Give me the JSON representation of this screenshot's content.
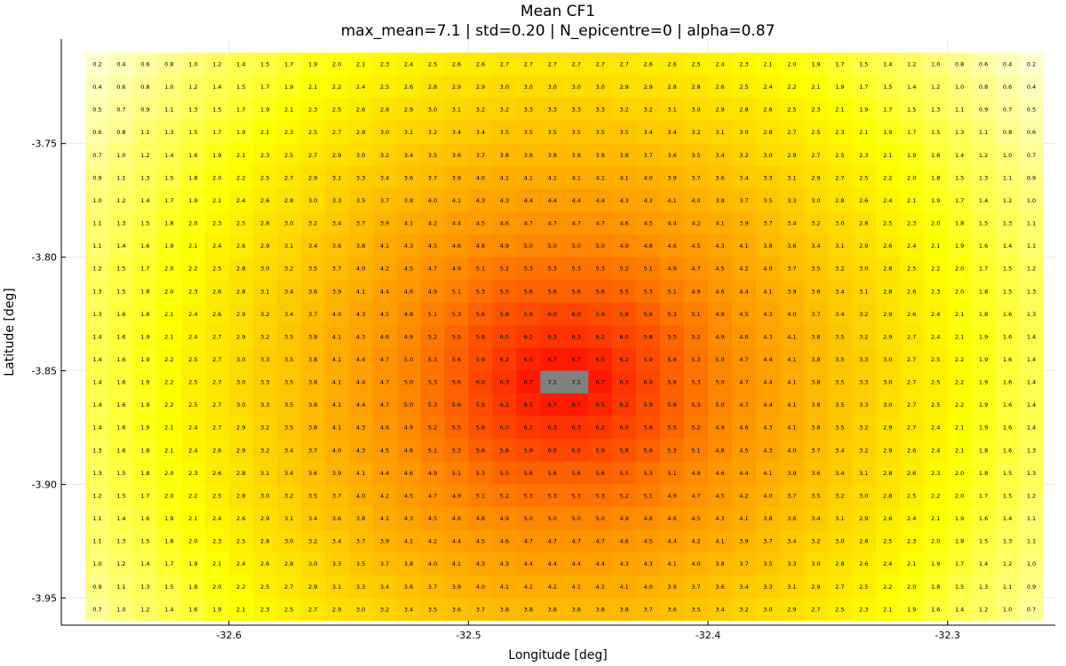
{
  "chart_data": {
    "type": "heatmap",
    "title": "Mean CF1",
    "subtitle": "max_mean=7.1 | std=0.20 | N_epicentre=0 | alpha=0.87",
    "xlabel": "Longitude [deg]",
    "ylabel": "Latitude [deg]",
    "x_ticks": [
      -32.6,
      -32.5,
      -32.4,
      -32.3
    ],
    "x_tick_labels": [
      "-32.6",
      "-32.5",
      "-32.4",
      "-32.3"
    ],
    "y_ticks": [
      -3.75,
      -3.8,
      -3.85,
      -3.9,
      -3.95
    ],
    "y_tick_labels": [
      "-3.75",
      "-3.80",
      "-3.85",
      "-3.90",
      "-3.95"
    ],
    "xlim": [
      -32.67,
      -32.255
    ],
    "ylim": [
      -3.962,
      -3.704
    ],
    "x_start": -32.655,
    "x_step": 0.01,
    "y_start": -3.715,
    "y_step": -0.01,
    "grid": true,
    "highlight_value": 7.1,
    "highlight_color": "#808080",
    "colors": [
      "#ffffe6",
      "#ffff00",
      "#ff8800",
      "#ff0000"
    ],
    "rows": [
      [
        0.2,
        0.4,
        0.6,
        0.8,
        1.0,
        1.2,
        1.4,
        1.5,
        1.7,
        1.9,
        2.0,
        2.1,
        2.3,
        2.4,
        2.5,
        2.6,
        2.6,
        2.7,
        2.7,
        2.7,
        2.7,
        2.7,
        2.7,
        2.6,
        2.6,
        2.5,
        2.4,
        2.3,
        2.1,
        2.0,
        1.9,
        1.7,
        1.5,
        1.4,
        1.2,
        1.0,
        0.8,
        0.6,
        0.4,
        0.2
      ],
      [
        0.4,
        0.6,
        0.8,
        1.0,
        1.2,
        1.4,
        1.5,
        1.7,
        1.9,
        2.1,
        2.2,
        2.4,
        2.5,
        2.6,
        2.8,
        2.9,
        2.9,
        3.0,
        3.0,
        3.0,
        3.0,
        3.0,
        2.9,
        2.9,
        2.8,
        2.8,
        2.6,
        2.5,
        2.4,
        2.2,
        2.1,
        1.9,
        1.7,
        1.5,
        1.4,
        1.2,
        1.0,
        0.8,
        0.6,
        0.4
      ],
      [
        0.5,
        0.7,
        0.9,
        1.1,
        1.3,
        1.5,
        1.7,
        1.9,
        2.1,
        2.3,
        2.5,
        2.6,
        2.8,
        2.9,
        3.0,
        3.1,
        3.2,
        3.2,
        3.3,
        3.3,
        3.3,
        3.3,
        3.2,
        3.2,
        3.1,
        3.0,
        2.9,
        2.8,
        2.6,
        2.5,
        2.3,
        2.1,
        1.9,
        1.7,
        1.5,
        1.3,
        1.1,
        0.9,
        0.7,
        0.5
      ],
      [
        0.6,
        0.8,
        1.1,
        1.3,
        1.5,
        1.7,
        1.9,
        2.1,
        2.3,
        2.5,
        2.7,
        2.8,
        3.0,
        3.1,
        3.2,
        3.4,
        3.4,
        3.5,
        3.5,
        3.5,
        3.5,
        3.5,
        3.5,
        3.4,
        3.4,
        3.2,
        3.1,
        3.0,
        2.8,
        2.7,
        2.5,
        2.3,
        2.1,
        1.9,
        1.7,
        1.5,
        1.3,
        1.1,
        0.8,
        0.6
      ],
      [
        0.7,
        1.0,
        1.2,
        1.4,
        1.6,
        1.9,
        2.1,
        2.3,
        2.5,
        2.7,
        2.9,
        3.0,
        3.2,
        3.4,
        3.5,
        3.6,
        3.7,
        3.8,
        3.8,
        3.8,
        3.8,
        3.8,
        3.8,
        3.7,
        3.6,
        3.5,
        3.4,
        3.2,
        3.0,
        2.9,
        2.7,
        2.5,
        2.3,
        2.1,
        1.9,
        1.6,
        1.4,
        1.2,
        1.0,
        0.7
      ],
      [
        0.9,
        1.1,
        1.3,
        1.5,
        1.8,
        2.0,
        2.2,
        2.5,
        2.7,
        2.9,
        3.1,
        3.3,
        3.4,
        3.6,
        3.7,
        3.9,
        4.0,
        4.1,
        4.1,
        4.1,
        4.1,
        4.1,
        4.1,
        4.0,
        3.9,
        3.7,
        3.6,
        3.4,
        3.3,
        3.1,
        2.9,
        2.7,
        2.5,
        2.2,
        2.0,
        1.8,
        1.5,
        1.3,
        1.1,
        0.9
      ],
      [
        1.0,
        1.2,
        1.4,
        1.7,
        1.9,
        2.1,
        2.4,
        2.6,
        2.8,
        3.0,
        3.3,
        3.5,
        3.7,
        3.8,
        4.0,
        4.1,
        4.3,
        4.3,
        4.4,
        4.4,
        4.4,
        4.4,
        4.3,
        4.3,
        4.1,
        4.0,
        3.8,
        3.7,
        3.5,
        3.3,
        3.0,
        2.8,
        2.6,
        2.4,
        2.1,
        1.9,
        1.7,
        1.4,
        1.2,
        1.0
      ],
      [
        1.1,
        1.3,
        1.5,
        1.8,
        2.0,
        2.3,
        2.5,
        2.8,
        3.0,
        3.2,
        3.4,
        3.7,
        3.9,
        4.1,
        4.2,
        4.4,
        4.5,
        4.6,
        4.7,
        4.7,
        4.7,
        4.7,
        4.6,
        4.5,
        4.4,
        4.2,
        4.1,
        3.9,
        3.7,
        3.4,
        3.2,
        3.0,
        2.8,
        2.5,
        2.3,
        2.0,
        1.8,
        1.5,
        1.3,
        1.1
      ],
      [
        1.1,
        1.4,
        1.6,
        1.9,
        2.1,
        2.4,
        2.6,
        2.9,
        3.1,
        3.4,
        3.6,
        3.8,
        4.1,
        4.3,
        4.5,
        4.6,
        4.8,
        4.9,
        5.0,
        5.0,
        5.0,
        5.0,
        4.9,
        4.8,
        4.6,
        4.5,
        4.3,
        4.1,
        3.8,
        3.6,
        3.4,
        3.1,
        2.9,
        2.6,
        2.4,
        2.1,
        1.9,
        1.6,
        1.4,
        1.1
      ],
      [
        1.2,
        1.5,
        1.7,
        2.0,
        2.2,
        2.5,
        2.8,
        3.0,
        3.2,
        3.5,
        3.7,
        4.0,
        4.2,
        4.5,
        4.7,
        4.9,
        5.1,
        5.2,
        5.3,
        5.3,
        5.3,
        5.3,
        5.2,
        5.1,
        4.9,
        4.7,
        4.5,
        4.2,
        4.0,
        3.7,
        3.5,
        3.2,
        3.0,
        2.8,
        2.5,
        2.2,
        2.0,
        1.7,
        1.5,
        1.2
      ],
      [
        1.3,
        1.5,
        1.8,
        2.0,
        2.3,
        2.6,
        2.8,
        3.1,
        3.4,
        3.6,
        3.9,
        4.1,
        4.4,
        4.6,
        4.9,
        5.1,
        5.3,
        5.5,
        5.6,
        5.6,
        5.6,
        5.6,
        5.5,
        5.3,
        5.1,
        4.9,
        4.6,
        4.4,
        4.1,
        3.9,
        3.6,
        3.4,
        3.1,
        2.8,
        2.6,
        2.3,
        2.0,
        1.8,
        1.5,
        1.3
      ],
      [
        1.3,
        1.6,
        1.8,
        2.1,
        2.4,
        2.6,
        2.9,
        3.2,
        3.4,
        3.7,
        4.0,
        4.3,
        4.5,
        4.8,
        5.1,
        5.3,
        5.6,
        5.8,
        5.9,
        6.0,
        6.0,
        5.9,
        5.8,
        5.6,
        5.3,
        5.1,
        4.8,
        4.5,
        4.3,
        4.0,
        3.7,
        3.4,
        3.2,
        2.9,
        2.6,
        2.4,
        2.1,
        1.8,
        1.6,
        1.3
      ],
      [
        1.4,
        1.6,
        1.9,
        2.1,
        2.4,
        2.7,
        2.9,
        3.2,
        3.5,
        3.8,
        4.1,
        4.3,
        4.6,
        4.9,
        5.2,
        5.5,
        5.8,
        6.0,
        6.2,
        6.3,
        6.3,
        6.2,
        6.0,
        5.8,
        5.5,
        5.2,
        4.9,
        4.6,
        4.3,
        4.1,
        3.8,
        3.5,
        3.2,
        2.9,
        2.7,
        2.4,
        2.1,
        1.9,
        1.6,
        1.4
      ],
      [
        1.4,
        1.6,
        1.9,
        2.2,
        2.5,
        2.7,
        3.0,
        3.3,
        3.5,
        3.8,
        4.1,
        4.4,
        4.7,
        5.0,
        5.3,
        5.6,
        5.9,
        6.2,
        6.5,
        6.7,
        6.7,
        6.5,
        6.2,
        5.9,
        5.6,
        5.3,
        5.0,
        4.7,
        4.4,
        4.1,
        3.8,
        3.5,
        3.3,
        3.0,
        2.7,
        2.5,
        2.2,
        1.9,
        1.6,
        1.4
      ],
      [
        1.4,
        1.6,
        1.9,
        2.2,
        2.5,
        2.7,
        3.0,
        3.3,
        3.5,
        3.8,
        4.1,
        4.4,
        4.7,
        5.0,
        5.3,
        5.6,
        6.0,
        6.3,
        6.7,
        7.1,
        7.1,
        6.7,
        6.3,
        6.0,
        5.6,
        5.3,
        5.0,
        4.7,
        4.4,
        4.1,
        3.8,
        3.5,
        3.3,
        3.0,
        2.7,
        2.5,
        2.2,
        1.9,
        1.6,
        1.4
      ],
      [
        1.4,
        1.6,
        1.9,
        2.2,
        2.5,
        2.7,
        3.0,
        3.3,
        3.5,
        3.8,
        4.1,
        4.4,
        4.7,
        5.0,
        5.3,
        5.6,
        5.9,
        6.2,
        6.5,
        6.7,
        6.7,
        6.5,
        6.2,
        5.9,
        5.6,
        5.3,
        5.0,
        4.7,
        4.4,
        4.1,
        3.8,
        3.5,
        3.3,
        3.0,
        2.7,
        2.5,
        2.2,
        1.9,
        1.6,
        1.4
      ],
      [
        1.4,
        1.6,
        1.9,
        2.1,
        2.4,
        2.7,
        2.9,
        3.2,
        3.5,
        3.8,
        4.1,
        4.3,
        4.6,
        4.9,
        5.2,
        5.5,
        5.8,
        6.0,
        6.2,
        6.3,
        6.3,
        6.2,
        6.0,
        5.8,
        5.5,
        5.2,
        4.9,
        4.6,
        4.3,
        4.1,
        3.8,
        3.5,
        3.2,
        2.9,
        2.7,
        2.4,
        2.1,
        1.9,
        1.6,
        1.4
      ],
      [
        1.3,
        1.6,
        1.8,
        2.1,
        2.4,
        2.6,
        2.9,
        3.2,
        3.4,
        3.7,
        4.0,
        4.3,
        4.5,
        4.8,
        5.1,
        5.3,
        5.6,
        5.8,
        5.9,
        6.0,
        6.0,
        5.9,
        5.8,
        5.6,
        5.3,
        5.1,
        4.8,
        4.5,
        4.3,
        4.0,
        3.7,
        3.4,
        3.2,
        2.9,
        2.6,
        2.4,
        2.1,
        1.8,
        1.6,
        1.3
      ],
      [
        1.3,
        1.5,
        1.8,
        2.0,
        2.3,
        2.6,
        2.8,
        3.1,
        3.4,
        3.6,
        3.9,
        4.1,
        4.4,
        4.6,
        4.9,
        5.1,
        5.3,
        5.5,
        5.6,
        5.6,
        5.6,
        5.6,
        5.5,
        5.3,
        5.1,
        4.9,
        4.6,
        4.4,
        4.1,
        3.9,
        3.6,
        3.4,
        3.1,
        2.8,
        2.6,
        2.3,
        2.0,
        1.8,
        1.5,
        1.3
      ],
      [
        1.2,
        1.5,
        1.7,
        2.0,
        2.2,
        2.5,
        2.8,
        3.0,
        3.2,
        3.5,
        3.7,
        4.0,
        4.2,
        4.5,
        4.7,
        4.9,
        5.1,
        5.2,
        5.3,
        5.3,
        5.3,
        5.3,
        5.2,
        5.1,
        4.9,
        4.7,
        4.5,
        4.2,
        4.0,
        3.7,
        3.5,
        3.2,
        3.0,
        2.8,
        2.5,
        2.2,
        2.0,
        1.7,
        1.5,
        1.2
      ],
      [
        1.1,
        1.4,
        1.6,
        1.9,
        2.1,
        2.4,
        2.6,
        2.9,
        3.1,
        3.4,
        3.6,
        3.8,
        4.1,
        4.3,
        4.5,
        4.6,
        4.8,
        4.9,
        5.0,
        5.0,
        5.0,
        5.0,
        4.9,
        4.8,
        4.6,
        4.5,
        4.3,
        4.1,
        3.8,
        3.6,
        3.4,
        3.1,
        2.9,
        2.6,
        2.4,
        2.1,
        1.9,
        1.6,
        1.4,
        1.1
      ],
      [
        1.1,
        1.3,
        1.5,
        1.8,
        2.0,
        2.3,
        2.5,
        2.8,
        3.0,
        3.2,
        3.4,
        3.7,
        3.9,
        4.1,
        4.2,
        4.4,
        4.5,
        4.6,
        4.7,
        4.7,
        4.7,
        4.7,
        4.6,
        4.5,
        4.4,
        4.2,
        4.1,
        3.9,
        3.7,
        3.4,
        3.2,
        3.0,
        2.8,
        2.5,
        2.3,
        2.0,
        1.8,
        1.5,
        1.3,
        1.1
      ],
      [
        1.0,
        1.2,
        1.4,
        1.7,
        1.9,
        2.1,
        2.4,
        2.6,
        2.8,
        3.0,
        3.3,
        3.5,
        3.7,
        3.8,
        4.0,
        4.1,
        4.3,
        4.3,
        4.4,
        4.4,
        4.4,
        4.4,
        4.3,
        4.3,
        4.1,
        4.0,
        3.8,
        3.7,
        3.5,
        3.3,
        3.0,
        2.8,
        2.6,
        2.4,
        2.1,
        1.9,
        1.7,
        1.4,
        1.2,
        1.0
      ],
      [
        0.9,
        1.1,
        1.3,
        1.5,
        1.8,
        2.0,
        2.2,
        2.5,
        2.7,
        2.9,
        3.1,
        3.3,
        3.4,
        3.6,
        3.7,
        3.9,
        4.0,
        4.1,
        4.1,
        4.1,
        4.1,
        4.1,
        4.1,
        4.0,
        3.9,
        3.7,
        3.6,
        3.4,
        3.3,
        3.1,
        2.9,
        2.7,
        2.5,
        2.2,
        2.0,
        1.8,
        1.5,
        1.3,
        1.1,
        0.9
      ],
      [
        0.7,
        1.0,
        1.2,
        1.4,
        1.6,
        1.9,
        2.1,
        2.3,
        2.5,
        2.7,
        2.9,
        3.0,
        3.2,
        3.4,
        3.5,
        3.6,
        3.7,
        3.8,
        3.8,
        3.8,
        3.8,
        3.8,
        3.8,
        3.7,
        3.6,
        3.5,
        3.4,
        3.2,
        3.0,
        2.9,
        2.7,
        2.5,
        2.3,
        2.1,
        1.9,
        1.6,
        1.4,
        1.2,
        1.0,
        0.7
      ]
    ]
  }
}
